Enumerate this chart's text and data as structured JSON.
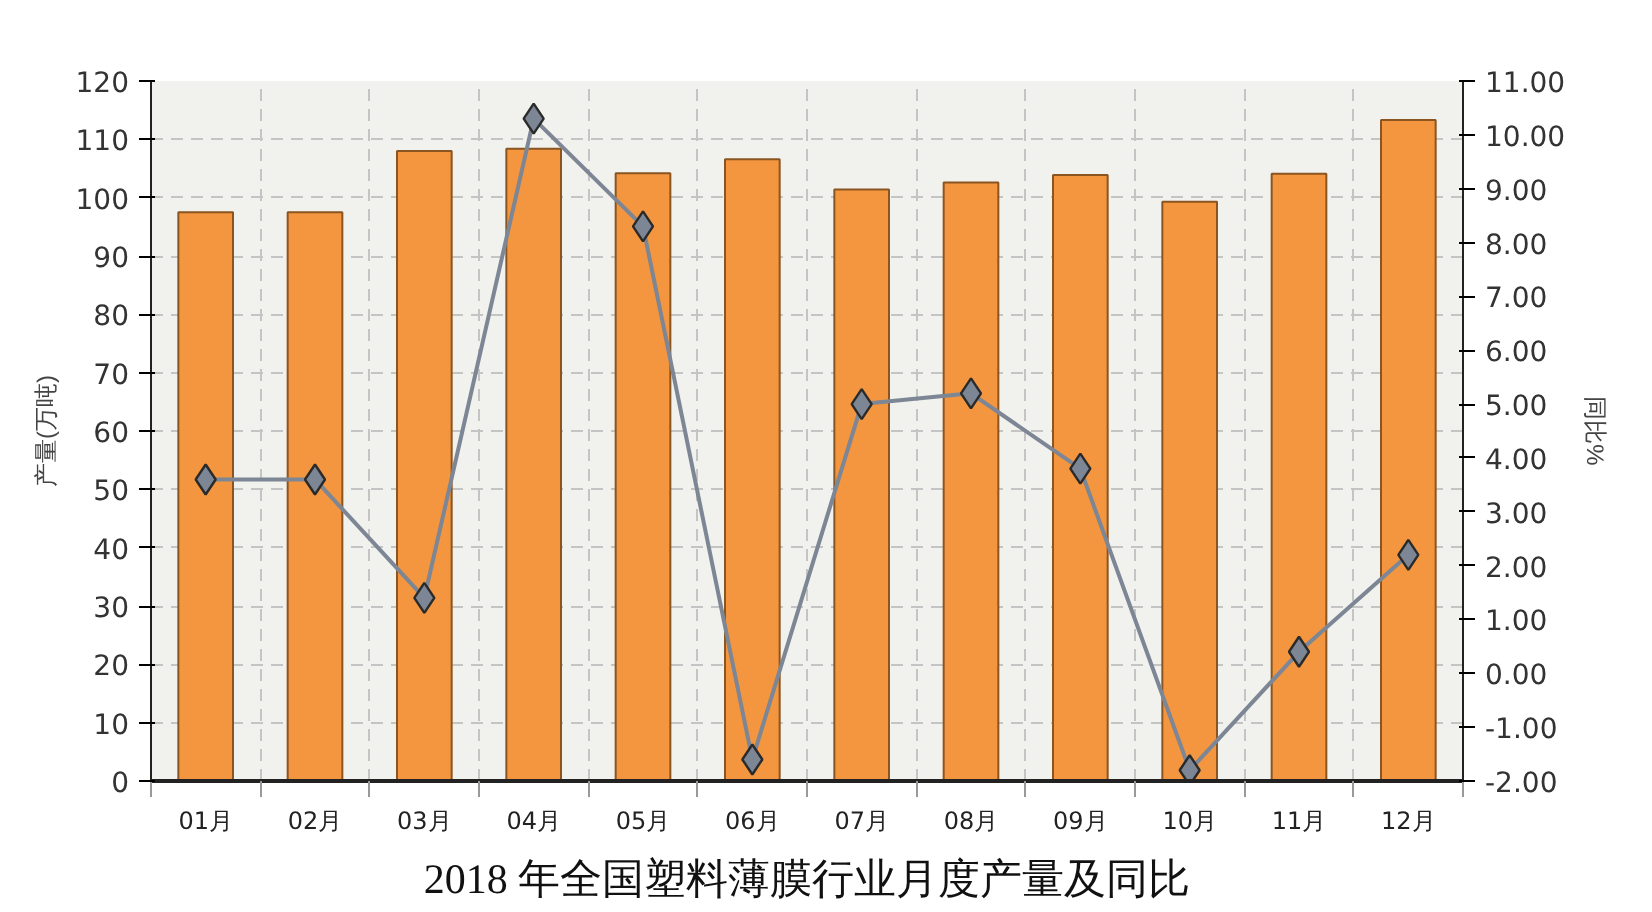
{
  "chart_data": {
    "type": "bar",
    "title": "2018 年全国塑料薄膜行业月度产量及同比",
    "ylabel": "产量(万吨)",
    "y2label": "同比%",
    "categories": [
      "01月",
      "02月",
      "03月",
      "04月",
      "05月",
      "06月",
      "07月",
      "08月",
      "09月",
      "10月",
      "11月",
      "12月"
    ],
    "series": [
      {
        "color": "#f3963f",
        "values": [
          97.5,
          97.5,
          108.0,
          108.4,
          104.2,
          106.6,
          101.4,
          102.6,
          103.9,
          99.3,
          104.1,
          113.3
        ]
      },
      {
        "type": "line",
        "axis": "y2",
        "color": "#7d8694",
        "values": [
          3.6,
          3.6,
          1.4,
          10.3,
          8.3,
          -1.6,
          5.0,
          5.2,
          3.8,
          -1.8,
          0.4,
          2.2
        ]
      }
    ],
    "ylim": [
      0,
      120
    ],
    "yticks": [
      0,
      10,
      20,
      30,
      40,
      50,
      60,
      70,
      80,
      90,
      100,
      110,
      120
    ],
    "y2lim": [
      -2,
      11
    ],
    "y2ticks": [
      {
        "value": -2,
        "label": "-2.00"
      },
      {
        "value": -1,
        "label": "-1.00"
      },
      {
        "value": 0,
        "label": "0.00"
      },
      {
        "value": 1,
        "label": "1.00"
      },
      {
        "value": 2,
        "label": "2.00"
      },
      {
        "value": 3,
        "label": "3.00"
      },
      {
        "value": 4,
        "label": "4.00"
      },
      {
        "value": 5,
        "label": "5.00"
      },
      {
        "value": 6,
        "label": "6.00"
      },
      {
        "value": 7,
        "label": "7.00"
      },
      {
        "value": 8,
        "label": "8.00"
      },
      {
        "value": 9,
        "label": "9.00"
      },
      {
        "value": 10,
        "label": "10.00"
      },
      {
        "value": 11,
        "label": "11.00"
      }
    ],
    "grid": true,
    "marker": "diamond"
  }
}
